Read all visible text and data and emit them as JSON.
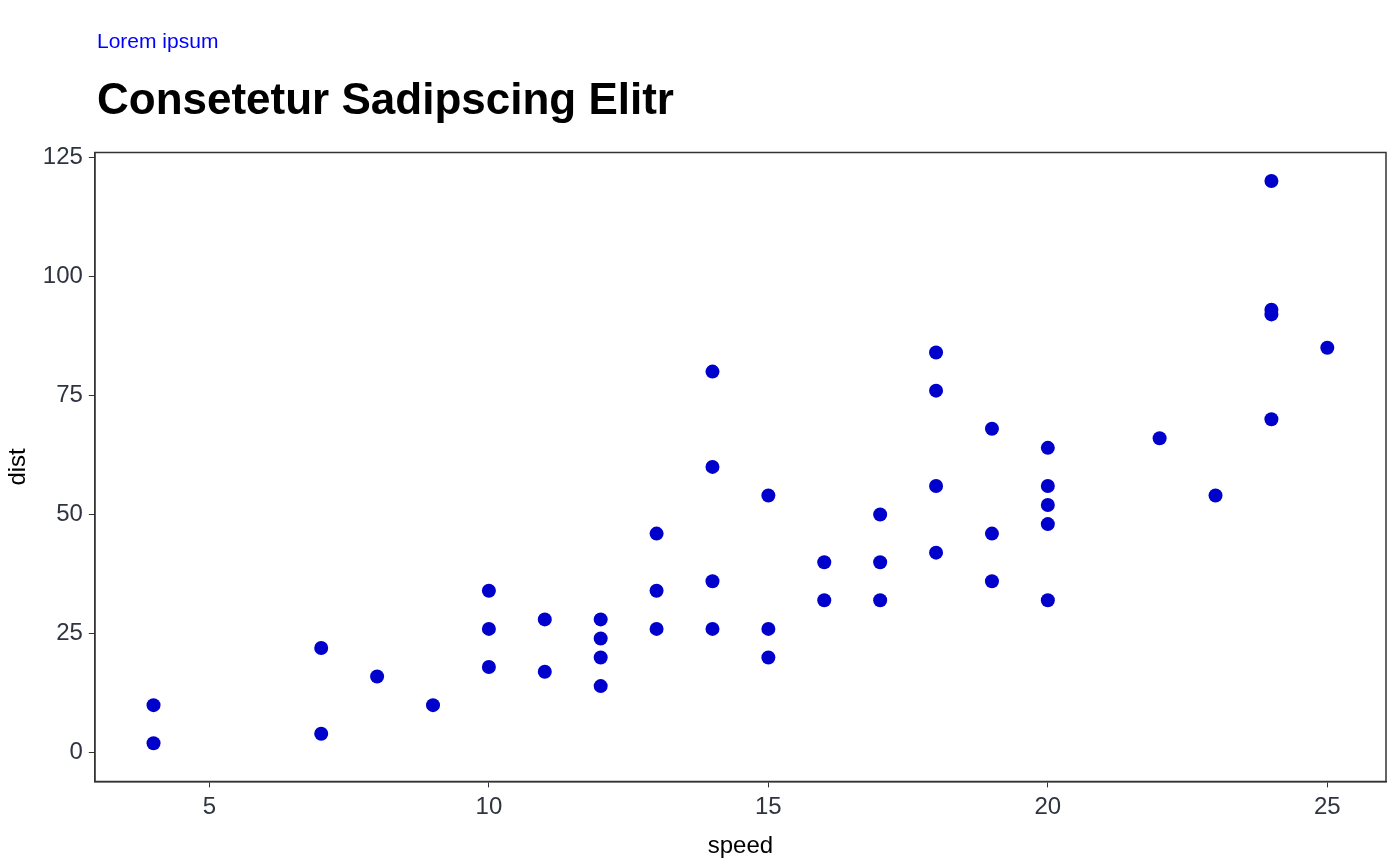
{
  "chart_data": {
    "type": "scatter",
    "title": "Consetetur Sadipscing Elitr",
    "subtitle": "Lorem ipsum",
    "xlabel": "speed",
    "ylabel": "dist",
    "series": [
      {
        "color": "#0000cc",
        "x": [
          4,
          4,
          7,
          7,
          8,
          9,
          10,
          10,
          10,
          11,
          11,
          12,
          12,
          12,
          12,
          13,
          13,
          13,
          14,
          14,
          14,
          14,
          15,
          15,
          15,
          16,
          16,
          17,
          17,
          17,
          18,
          18,
          18,
          18,
          19,
          19,
          19,
          20,
          20,
          20,
          20,
          20,
          22,
          23,
          24,
          24,
          24,
          24,
          25
        ],
        "values": [
          2,
          10,
          4,
          22,
          16,
          10,
          18,
          26,
          34,
          17,
          28,
          14,
          20,
          24,
          28,
          26,
          34,
          46,
          26,
          36,
          60,
          80,
          20,
          26,
          54,
          32,
          40,
          32,
          40,
          50,
          42,
          56,
          76,
          84,
          36,
          46,
          68,
          32,
          48,
          52,
          56,
          64,
          66,
          54,
          70,
          92,
          93,
          120,
          85
        ]
      }
    ],
    "xlim": [
      2.95,
      26.05
    ],
    "xticks": [
      5,
      10,
      15,
      20,
      25
    ],
    "ylim": [
      -6,
      126
    ],
    "yticks": [
      0,
      25,
      50,
      75,
      100,
      125
    ],
    "grid": false,
    "legend": false,
    "marker": "circle"
  }
}
